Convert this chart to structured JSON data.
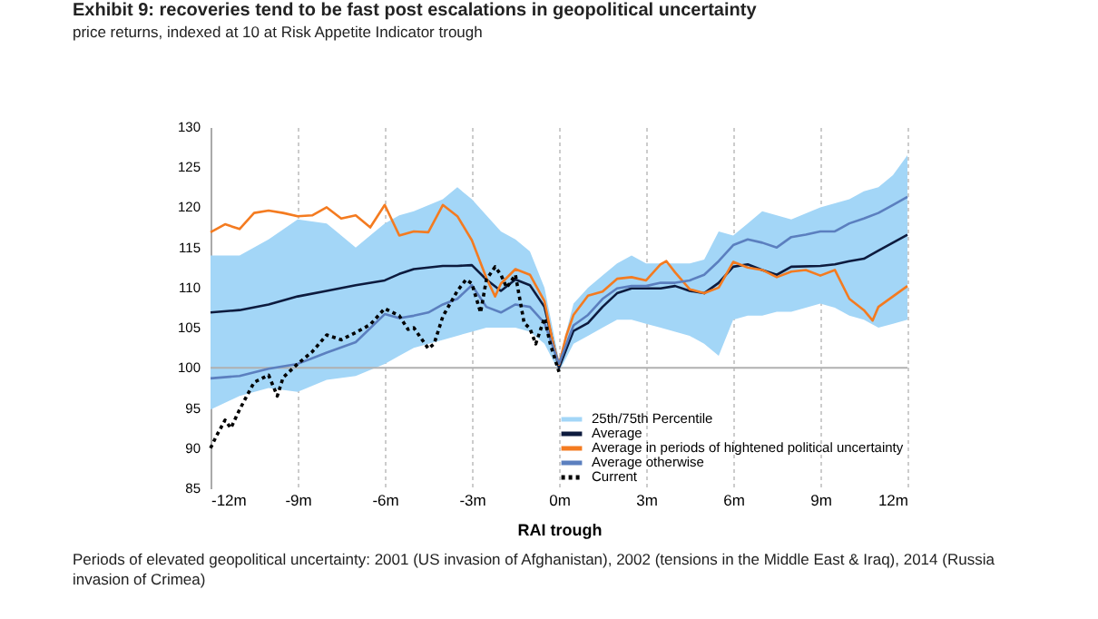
{
  "chart_data": {
    "type": "line",
    "title": "Exhibit 9: recoveries tend to be fast post escalations in geopolitical uncertainty",
    "subtitle": "price returns, indexed at 10 at Risk Appetite Indicator trough",
    "xlabel": "RAI trough",
    "annotations": [
      "Periods of elevated geopolitical uncertainty: 2001 (US invasion of Afghanistan), 2002 (tensions in the Middle East & Iraq), 2014 (Russia invasion of Crimea)"
    ],
    "xlim": [
      -12,
      12
    ],
    "xticks": [
      {
        "value": -12,
        "label": "-12m"
      },
      {
        "value": -9,
        "label": "-9m"
      },
      {
        "value": -6,
        "label": "-6m"
      },
      {
        "value": -3,
        "label": "-3m"
      },
      {
        "value": 0,
        "label": "0m"
      },
      {
        "value": 3,
        "label": "3m"
      },
      {
        "value": 6,
        "label": "6m"
      },
      {
        "value": 9,
        "label": "9m"
      },
      {
        "value": 12,
        "label": "12m"
      }
    ],
    "ylim": [
      85,
      130
    ],
    "yticks": [
      85,
      90,
      95,
      100,
      105,
      110,
      115,
      120,
      125,
      130
    ],
    "grid": "x",
    "legend": "bottom right",
    "ref_lines": [
      {
        "axis": "y",
        "value": 100,
        "color": "#b0b0b0"
      }
    ],
    "series": [
      {
        "name": "25th/75th Percentile",
        "type": "area",
        "color": "#a3d6f7"
      },
      {
        "name": "Average",
        "type": "line",
        "color": "#0d1b3e",
        "x": [
          -12,
          -11,
          -10,
          -9,
          -8,
          -7,
          -6,
          -5.5,
          -5,
          -4,
          -3.5,
          -3,
          -2.5,
          -2,
          -1.5,
          -1,
          -0.5,
          0,
          0.5,
          1,
          1.5,
          2,
          2.5,
          3,
          3.5,
          4,
          4.5,
          5,
          5.5,
          6,
          6.5,
          7,
          7.5,
          8,
          9,
          9.5,
          10,
          10.5,
          11,
          11.5,
          12
        ],
        "values": [
          106.9,
          107.2,
          107.9,
          108.9,
          109.6,
          110.3,
          110.9,
          111.7,
          112.3,
          112.7,
          112.7,
          112.8,
          111,
          109.6,
          111,
          110.3,
          107.6,
          100,
          104.6,
          105.6,
          107.6,
          109.3,
          109.9,
          109.9,
          109.9,
          110.2,
          109.6,
          109.3,
          110.6,
          112.6,
          112.9,
          112.2,
          111.6,
          112.6,
          112.7,
          112.9,
          113.3,
          113.6,
          114.6,
          115.6,
          116.6
        ],
        "lower": [
          94.8,
          96.5,
          97.5,
          97,
          98.5,
          99,
          100.5,
          101.5,
          102.5,
          103.5,
          104,
          104.5,
          105,
          105,
          105,
          104.5,
          103,
          99.5,
          103,
          104,
          105,
          106,
          106,
          105.5,
          105,
          104.5,
          104,
          103,
          101.5,
          106,
          106.5,
          106.5,
          107,
          107,
          108,
          107.5,
          106.5,
          106,
          105,
          105.5,
          106
        ],
        "upper": [
          114,
          114,
          116,
          118.5,
          118,
          115,
          118,
          119,
          119.5,
          121,
          122.5,
          121,
          119,
          117,
          116,
          114.5,
          110,
          101,
          108,
          110,
          111.5,
          113,
          114,
          113,
          113,
          113,
          113,
          113.5,
          117,
          116.5,
          118,
          119.5,
          119,
          118.5,
          120,
          120.5,
          121,
          122,
          122.5,
          124,
          126.5
        ]
      },
      {
        "name": "Average in periods of hightened political uncertainty",
        "type": "line",
        "color": "#f47b20",
        "x": [
          -12,
          -11.5,
          -11,
          -10.5,
          -10,
          -9.5,
          -9,
          -8.5,
          -8,
          -7.5,
          -7,
          -6.5,
          -6,
          -5.5,
          -5,
          -4.5,
          -4,
          -3.5,
          -3,
          -2.5,
          -2.2,
          -2,
          -1.5,
          -1,
          -0.5,
          -0.2,
          0,
          0.25,
          0.5,
          1,
          1.5,
          2,
          2.5,
          3,
          3.5,
          3.7,
          4,
          4.5,
          5,
          5.5,
          6,
          6.5,
          7,
          7.5,
          8,
          8.5,
          9,
          9.5,
          10,
          10.5,
          10.8,
          11,
          11.5,
          12
        ],
        "values": [
          116.9,
          117.9,
          117.3,
          119.3,
          119.6,
          119.3,
          118.9,
          119,
          120,
          118.6,
          119,
          117.5,
          120.3,
          116.5,
          117,
          116.9,
          120.3,
          118.9,
          115.9,
          111.2,
          108.9,
          110.5,
          112.3,
          111.6,
          108.3,
          103,
          100.4,
          104,
          106.6,
          109,
          109.5,
          111.1,
          111.3,
          110.9,
          112.9,
          113.3,
          111.9,
          109.8,
          109.3,
          110,
          113.2,
          112.5,
          112.2,
          111.3,
          112,
          112.2,
          111.5,
          112.2,
          108.6,
          107.2,
          105.9,
          107.6,
          108.9,
          110.2
        ]
      },
      {
        "name": "Average otherwise",
        "type": "line",
        "color": "#5b7fbf",
        "x": [
          -12,
          -11,
          -10,
          -9,
          -8.5,
          -8,
          -7,
          -6,
          -5.5,
          -5,
          -4.5,
          -4,
          -3.5,
          -3,
          -2.5,
          -2,
          -1.5,
          -1,
          -0.5,
          0,
          0.5,
          1,
          1.5,
          2,
          2.5,
          3,
          3.5,
          4,
          4.5,
          5,
          5.5,
          6,
          6.5,
          7,
          7.5,
          8,
          8.5,
          9,
          9.5,
          10,
          10.5,
          11,
          11.5,
          12
        ],
        "values": [
          98.7,
          99,
          99.9,
          100.5,
          101.2,
          101.9,
          103.2,
          106.7,
          106.2,
          106.5,
          106.9,
          107.9,
          108.6,
          110.3,
          107.6,
          106.9,
          107.9,
          107.6,
          105.6,
          100.5,
          105.3,
          106.6,
          108.6,
          109.9,
          110.2,
          110.2,
          110.6,
          110.6,
          110.9,
          111.6,
          113.3,
          115.3,
          116,
          115.6,
          115,
          116.3,
          116.6,
          117,
          117,
          118,
          118.6,
          119.3,
          120.3,
          121.3
        ]
      },
      {
        "name": "Current",
        "type": "line",
        "line_style": "dotted",
        "color": "#000000",
        "x": [
          -12,
          -11.8,
          -11.5,
          -11.3,
          -11,
          -10.5,
          -10,
          -9.7,
          -9.5,
          -9,
          -8.5,
          -8,
          -7.5,
          -7,
          -6.5,
          -6,
          -5.5,
          -5.2,
          -5,
          -4.5,
          -4.3,
          -4,
          -3.5,
          -3.2,
          -3,
          -2.7,
          -2.5,
          -2.2,
          -2,
          -1.8,
          -1.5,
          -1.2,
          -1,
          -0.8,
          -0.5,
          -0.3,
          0
        ],
        "values": [
          90,
          91.5,
          93.5,
          92.5,
          94.8,
          98.2,
          99.1,
          96.5,
          98.8,
          100.5,
          102,
          104.1,
          103.5,
          104.4,
          105.4,
          107.4,
          106.5,
          104.8,
          105,
          102.4,
          103,
          106.4,
          109.6,
          111,
          110.5,
          106.9,
          111,
          112.6,
          111.6,
          110,
          111.6,
          105.6,
          104.9,
          103,
          106.2,
          103,
          99.5
        ]
      }
    ]
  }
}
